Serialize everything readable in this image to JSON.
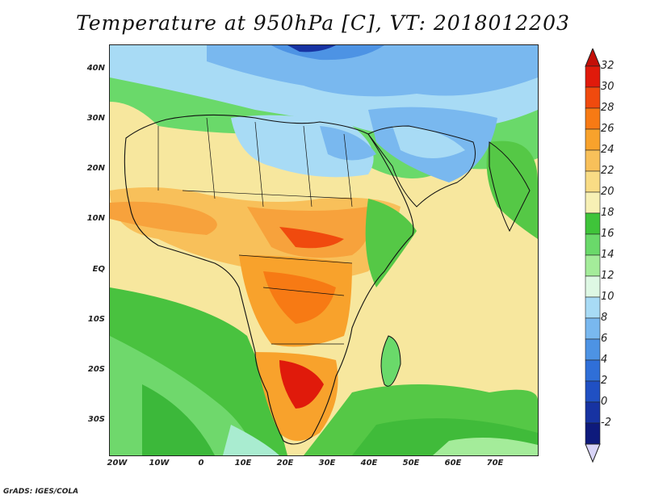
{
  "title": "Temperature at 950hPa [C], VT: 2018012203",
  "credit": "GrADS: IGES/COLA",
  "lat_labels": [
    "40N",
    "30N",
    "20N",
    "10N",
    "EQ",
    "10S",
    "20S",
    "30S"
  ],
  "lon_labels": [
    "20W",
    "10W",
    "0",
    "10E",
    "20E",
    "30E",
    "40E",
    "50E",
    "60E",
    "70E"
  ],
  "colorbar": {
    "labels": [
      "32",
      "30",
      "28",
      "26",
      "24",
      "22",
      "20",
      "18",
      "16",
      "14",
      "12",
      "10",
      "8",
      "6",
      "4",
      "2",
      "0",
      "-2"
    ],
    "colors": [
      "#e01a0b",
      "#f04a0e",
      "#f77a14",
      "#f8a22c",
      "#f8c05a",
      "#f9dc85",
      "#f7f0b5",
      "#3fc43a",
      "#6ad96a",
      "#a4ec9a",
      "#def8e4",
      "#a8dbf5",
      "#79b8ef",
      "#4d93e4",
      "#2f6fd8",
      "#2050c3",
      "#1733a2",
      "#0e1a7c"
    ],
    "arrow_top_color": "#c40f08",
    "arrow_bottom_color": "#d8d4f8"
  }
}
